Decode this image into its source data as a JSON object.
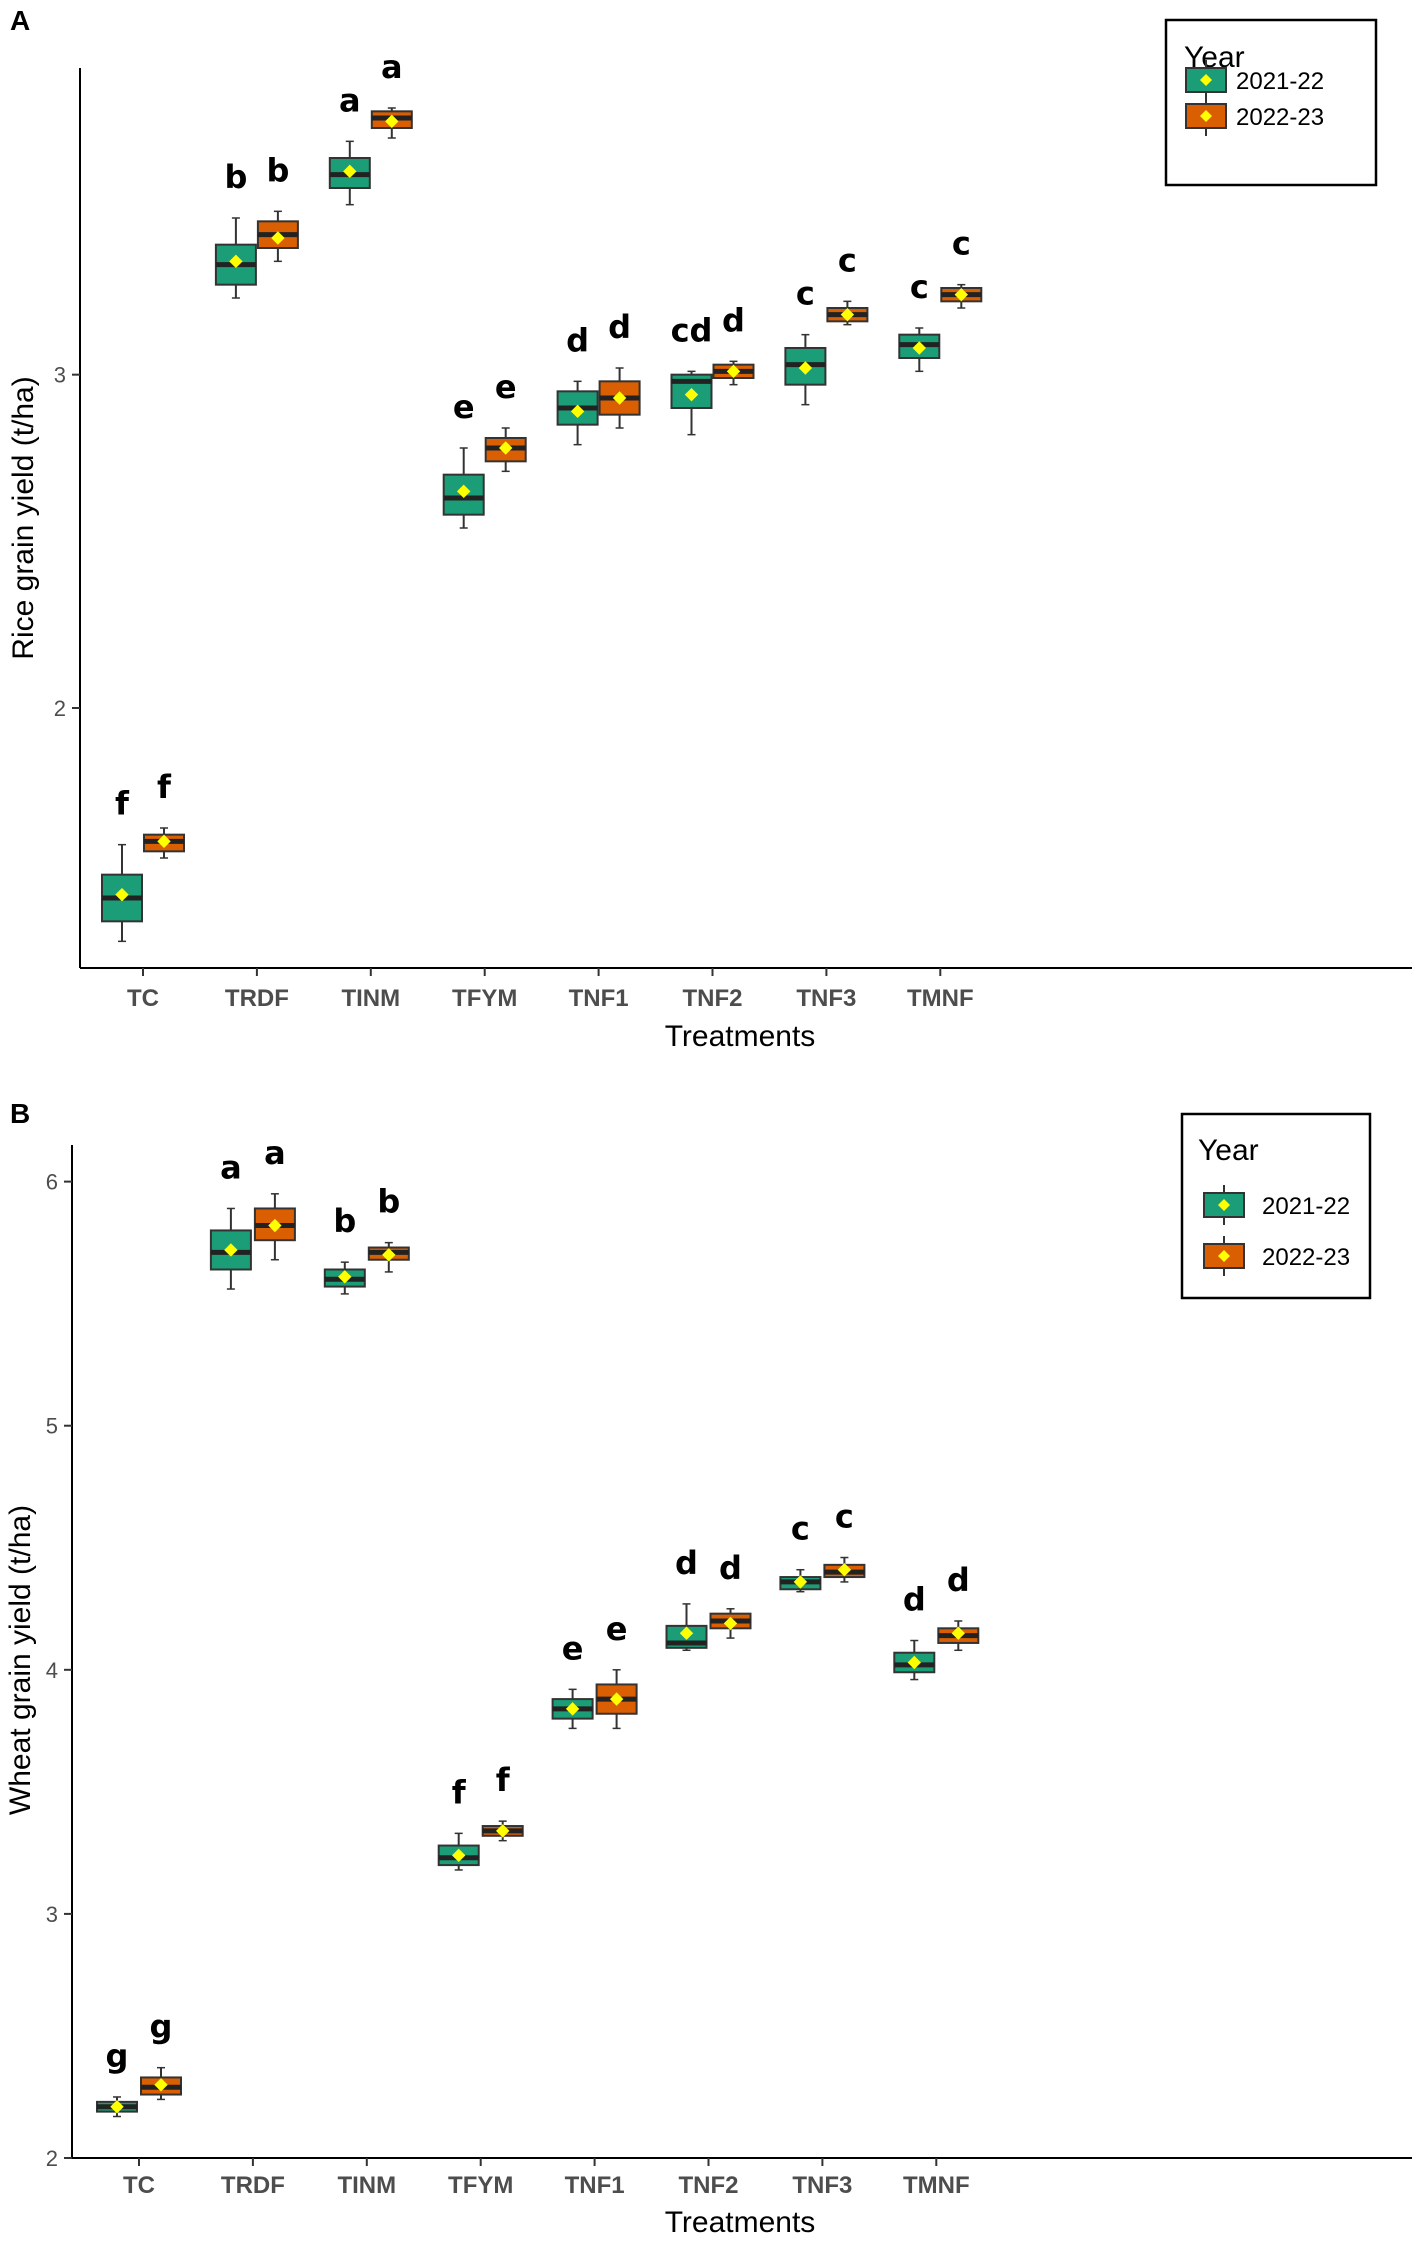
{
  "chart_data": [
    {
      "panel": "A",
      "type": "boxplot",
      "xlabel": "Treatments",
      "ylabel": "Rice grain yield (t/ha)",
      "ylim": [
        1.22,
        3.92
      ],
      "yticks": [
        2,
        3
      ],
      "categories": [
        "TC",
        "TRDF",
        "TINM",
        "TFYM",
        "TNF1",
        "TNF2",
        "TNF3",
        "TMNF"
      ],
      "legend": {
        "title": "Year",
        "position": "top-right"
      },
      "series": [
        {
          "name": "2021-22",
          "color": "#1b9e77",
          "boxes": [
            {
              "min": 1.3,
              "q1": 1.36,
              "median": 1.43,
              "q3": 1.5,
              "max": 1.59,
              "mean": 1.44,
              "letter": "f"
            },
            {
              "min": 3.23,
              "q1": 3.27,
              "median": 3.33,
              "q3": 3.39,
              "max": 3.47,
              "mean": 3.34,
              "letter": "b"
            },
            {
              "min": 3.51,
              "q1": 3.56,
              "median": 3.6,
              "q3": 3.65,
              "max": 3.7,
              "mean": 3.61,
              "letter": "a"
            },
            {
              "min": 2.54,
              "q1": 2.58,
              "median": 2.63,
              "q3": 2.7,
              "max": 2.78,
              "mean": 2.65,
              "letter": "e"
            },
            {
              "min": 2.79,
              "q1": 2.85,
              "median": 2.9,
              "q3": 2.95,
              "max": 2.98,
              "mean": 2.89,
              "letter": "d"
            },
            {
              "min": 2.82,
              "q1": 2.9,
              "median": 2.98,
              "q3": 3.0,
              "max": 3.01,
              "mean": 2.94,
              "letter": "cd"
            },
            {
              "min": 2.91,
              "q1": 2.97,
              "median": 3.03,
              "q3": 3.08,
              "max": 3.12,
              "mean": 3.02,
              "letter": "c"
            },
            {
              "min": 3.01,
              "q1": 3.05,
              "median": 3.09,
              "q3": 3.12,
              "max": 3.14,
              "mean": 3.08,
              "letter": "c"
            }
          ]
        },
        {
          "name": "2022-23",
          "color": "#d95f02",
          "boxes": [
            {
              "min": 1.55,
              "q1": 1.57,
              "median": 1.6,
              "q3": 1.62,
              "max": 1.64,
              "mean": 1.6,
              "letter": "f"
            },
            {
              "min": 3.34,
              "q1": 3.38,
              "median": 3.42,
              "q3": 3.46,
              "max": 3.49,
              "mean": 3.41,
              "letter": "b"
            },
            {
              "min": 3.71,
              "q1": 3.74,
              "median": 3.77,
              "q3": 3.79,
              "max": 3.8,
              "mean": 3.76,
              "letter": "a"
            },
            {
              "min": 2.71,
              "q1": 2.74,
              "median": 2.78,
              "q3": 2.81,
              "max": 2.84,
              "mean": 2.78,
              "letter": "e"
            },
            {
              "min": 2.84,
              "q1": 2.88,
              "median": 2.93,
              "q3": 2.98,
              "max": 3.02,
              "mean": 2.93,
              "letter": "d"
            },
            {
              "min": 2.97,
              "q1": 2.99,
              "median": 3.01,
              "q3": 3.03,
              "max": 3.04,
              "mean": 3.01,
              "letter": "d"
            },
            {
              "min": 3.15,
              "q1": 3.16,
              "median": 3.18,
              "q3": 3.2,
              "max": 3.22,
              "mean": 3.18,
              "letter": "c"
            },
            {
              "min": 3.2,
              "q1": 3.22,
              "median": 3.24,
              "q3": 3.26,
              "max": 3.27,
              "mean": 3.24,
              "letter": "c"
            }
          ]
        }
      ]
    },
    {
      "panel": "B",
      "type": "boxplot",
      "xlabel": "Treatments",
      "ylabel": "Wheat grain yield (t/ha)",
      "ylim": [
        2.0,
        6.15
      ],
      "yticks": [
        2,
        3,
        4,
        5,
        6
      ],
      "categories": [
        "TC",
        "TRDF",
        "TINM",
        "TFYM",
        "TNF1",
        "TNF2",
        "TNF3",
        "TMNF"
      ],
      "legend": {
        "title": "Year",
        "position": "top-right"
      },
      "series": [
        {
          "name": "2021-22",
          "color": "#1b9e77",
          "boxes": [
            {
              "min": 2.17,
              "q1": 2.19,
              "median": 2.21,
              "q3": 2.23,
              "max": 2.25,
              "mean": 2.21,
              "letter": "g"
            },
            {
              "min": 5.56,
              "q1": 5.64,
              "median": 5.71,
              "q3": 5.8,
              "max": 5.89,
              "mean": 5.72,
              "letter": "a"
            },
            {
              "min": 5.54,
              "q1": 5.57,
              "median": 5.6,
              "q3": 5.64,
              "max": 5.67,
              "mean": 5.61,
              "letter": "b"
            },
            {
              "min": 3.18,
              "q1": 3.2,
              "median": 3.23,
              "q3": 3.28,
              "max": 3.33,
              "mean": 3.24,
              "letter": "f"
            },
            {
              "min": 3.76,
              "q1": 3.8,
              "median": 3.84,
              "q3": 3.88,
              "max": 3.92,
              "mean": 3.84,
              "letter": "e"
            },
            {
              "min": 4.08,
              "q1": 4.09,
              "median": 4.11,
              "q3": 4.18,
              "max": 4.27,
              "mean": 4.15,
              "letter": "d"
            },
            {
              "min": 4.32,
              "q1": 4.33,
              "median": 4.36,
              "q3": 4.38,
              "max": 4.41,
              "mean": 4.36,
              "letter": "c"
            },
            {
              "min": 3.96,
              "q1": 3.99,
              "median": 4.02,
              "q3": 4.07,
              "max": 4.12,
              "mean": 4.03,
              "letter": "d"
            }
          ]
        },
        {
          "name": "2022-23",
          "color": "#d95f02",
          "boxes": [
            {
              "min": 2.24,
              "q1": 2.26,
              "median": 2.29,
              "q3": 2.33,
              "max": 2.37,
              "mean": 2.3,
              "letter": "g"
            },
            {
              "min": 5.68,
              "q1": 5.76,
              "median": 5.82,
              "q3": 5.89,
              "max": 5.95,
              "mean": 5.82,
              "letter": "a"
            },
            {
              "min": 5.63,
              "q1": 5.68,
              "median": 5.71,
              "q3": 5.73,
              "max": 5.75,
              "mean": 5.7,
              "letter": "b"
            },
            {
              "min": 3.3,
              "q1": 3.32,
              "median": 3.34,
              "q3": 3.36,
              "max": 3.38,
              "mean": 3.34,
              "letter": "f"
            },
            {
              "min": 3.76,
              "q1": 3.82,
              "median": 3.88,
              "q3": 3.94,
              "max": 4.0,
              "mean": 3.88,
              "letter": "e"
            },
            {
              "min": 4.13,
              "q1": 4.17,
              "median": 4.2,
              "q3": 4.23,
              "max": 4.25,
              "mean": 4.19,
              "letter": "d"
            },
            {
              "min": 4.36,
              "q1": 4.38,
              "median": 4.4,
              "q3": 4.43,
              "max": 4.46,
              "mean": 4.41,
              "letter": "c"
            },
            {
              "min": 4.08,
              "q1": 4.11,
              "median": 4.14,
              "q3": 4.17,
              "max": 4.2,
              "mean": 4.15,
              "letter": "d"
            }
          ]
        }
      ]
    }
  ]
}
